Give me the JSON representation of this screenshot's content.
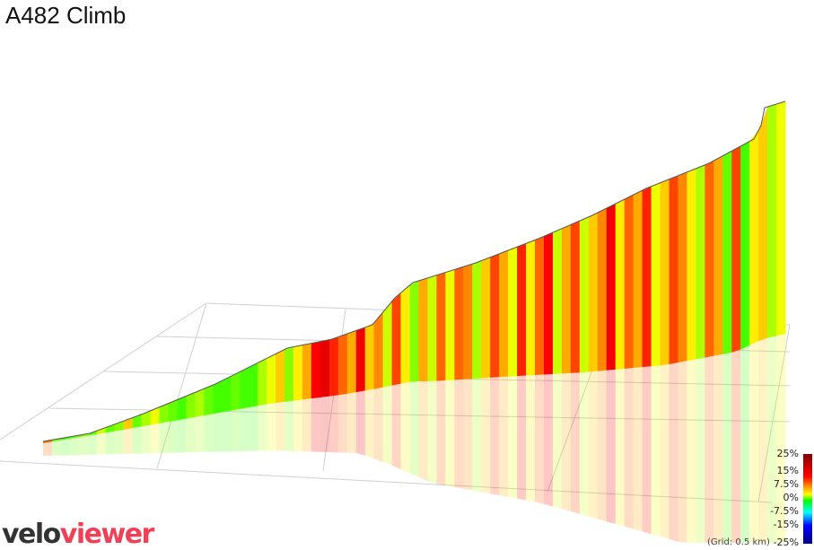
{
  "title": "A482 Climb",
  "chart_data": {
    "type": "3d-area",
    "title": "A482 Climb",
    "color_scale": {
      "ticks": [
        "25%",
        "15%",
        "7.5%",
        "0%",
        "-7.5%",
        "-15%",
        "-25%"
      ],
      "stops": [
        {
          "grade": 25,
          "color": "#800000"
        },
        {
          "grade": 15,
          "color": "#ff0000"
        },
        {
          "grade": 7.5,
          "color": "#ffff00"
        },
        {
          "grade": 0,
          "color": "#00ff00"
        },
        {
          "grade": -7.5,
          "color": "#00ffff"
        },
        {
          "grade": -15,
          "color": "#0000ff"
        },
        {
          "grade": -25,
          "color": "#000080"
        }
      ]
    },
    "grid_note": "(Grid: 0.5 km)",
    "segment_grades_pct": [
      12,
      3,
      2,
      3,
      4,
      3,
      6,
      3,
      4,
      9,
      3,
      5,
      7,
      4,
      3,
      2,
      4,
      5,
      3,
      2,
      2,
      3,
      2,
      2,
      5,
      7,
      9,
      4,
      8,
      10,
      15,
      17,
      14,
      12,
      10,
      16,
      9,
      11,
      6,
      13,
      8,
      4,
      10,
      6,
      12,
      7,
      12,
      11,
      5,
      9,
      13,
      10,
      7,
      14,
      8,
      12,
      15,
      6,
      10,
      13,
      6,
      9,
      11,
      16,
      8,
      12,
      10,
      14,
      7,
      9,
      13,
      11,
      8,
      5,
      12,
      10,
      3,
      13,
      2,
      8,
      9,
      5,
      7
    ],
    "grid": true
  },
  "logo": {
    "part1": "velo",
    "part2": "viewer"
  }
}
